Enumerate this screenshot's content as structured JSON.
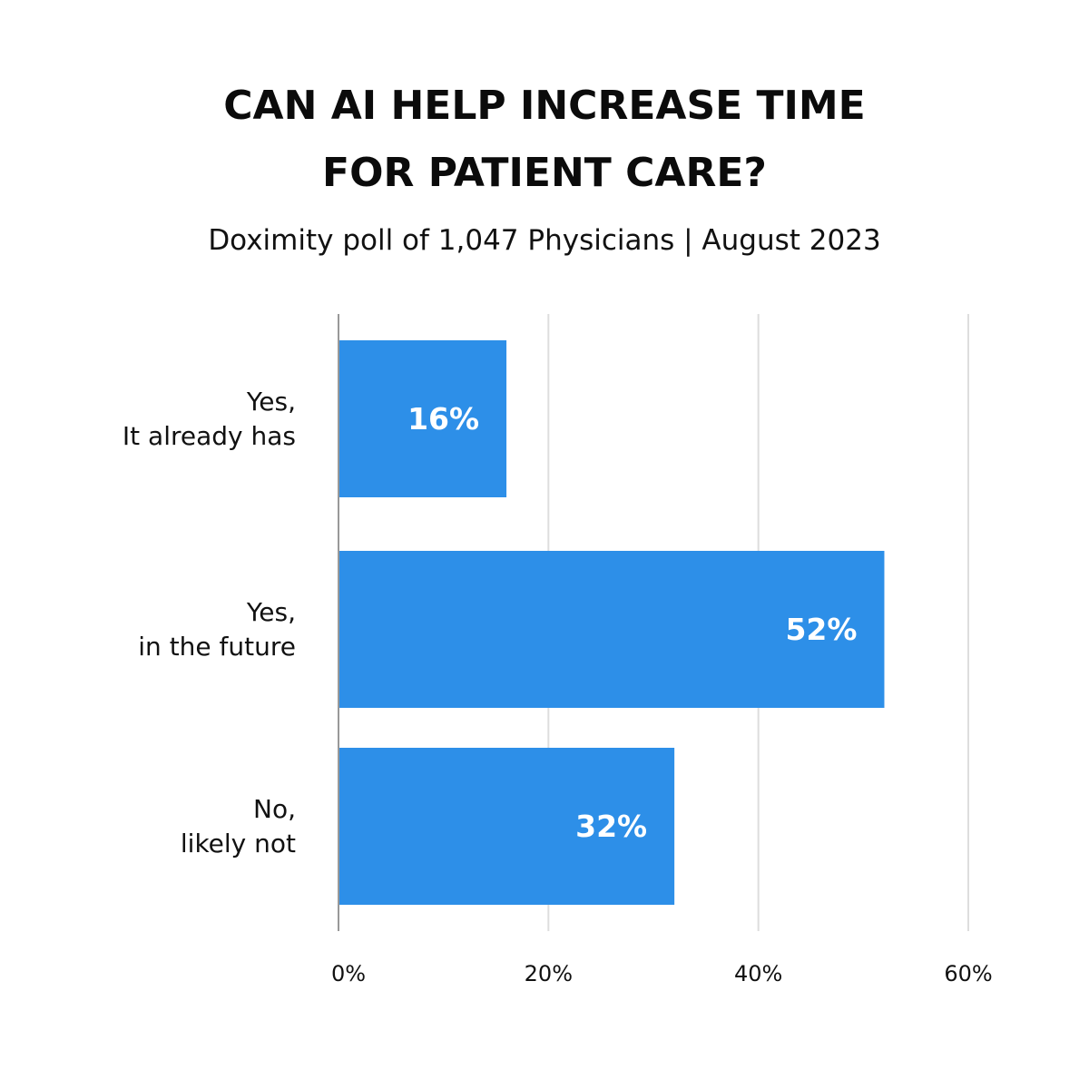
{
  "chart_data": {
    "type": "bar",
    "orientation": "horizontal",
    "title": "CAN AI HELP INCREASE TIME FOR PATIENT CARE?",
    "title_lines": [
      "CAN AI HELP INCREASE TIME",
      "FOR PATIENT CARE?"
    ],
    "subtitle": "Doximity poll of 1,047 Physicians | August 2023",
    "categories": [
      [
        "Yes,",
        "It already has"
      ],
      [
        "Yes,",
        "in the future"
      ],
      [
        "No,",
        "likely not"
      ]
    ],
    "values": [
      16,
      52,
      32
    ],
    "data_labels": [
      "16%",
      "52%",
      "32%"
    ],
    "xlim": [
      0,
      60
    ],
    "xticks": [
      0,
      20,
      40,
      60
    ],
    "xtick_labels": [
      "0%",
      "20%",
      "40%",
      "60%"
    ],
    "grid": true,
    "legend": "none",
    "colors": {
      "bar": "#2d8fe8",
      "grid": "#dddddd",
      "axis": "#999999"
    }
  }
}
